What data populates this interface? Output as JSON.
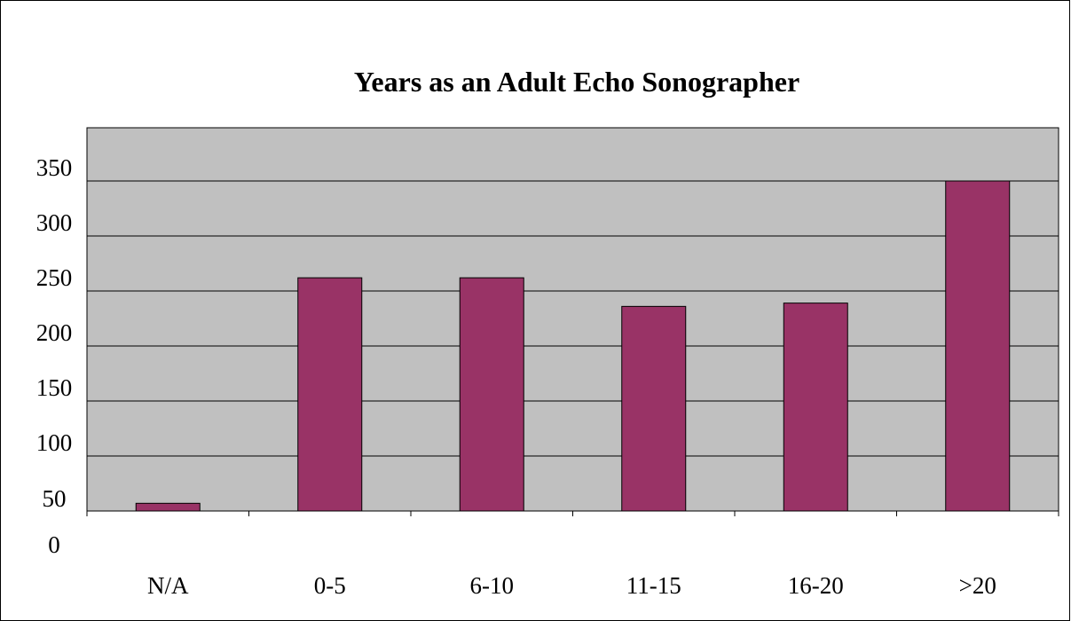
{
  "chart_data": {
    "type": "bar",
    "title": "Years as an Adult Echo Sonographer",
    "categories": [
      "N/A",
      "0-5",
      "6-10",
      "11-15",
      "16-20",
      ">20"
    ],
    "series": [
      {
        "values": [
          7,
          212,
          212,
          186,
          189,
          300
        ]
      }
    ],
    "y_tick_labels": [
      "0",
      "50",
      "100",
      "150",
      "200",
      "250",
      "300",
      "350"
    ],
    "ylim": [
      0,
      350
    ],
    "grid": true,
    "legend": "none",
    "colors": {
      "bar_fill": "#993366",
      "plot_background": "#c0c0c0",
      "gridline": "#000000",
      "border": "#000000"
    }
  }
}
